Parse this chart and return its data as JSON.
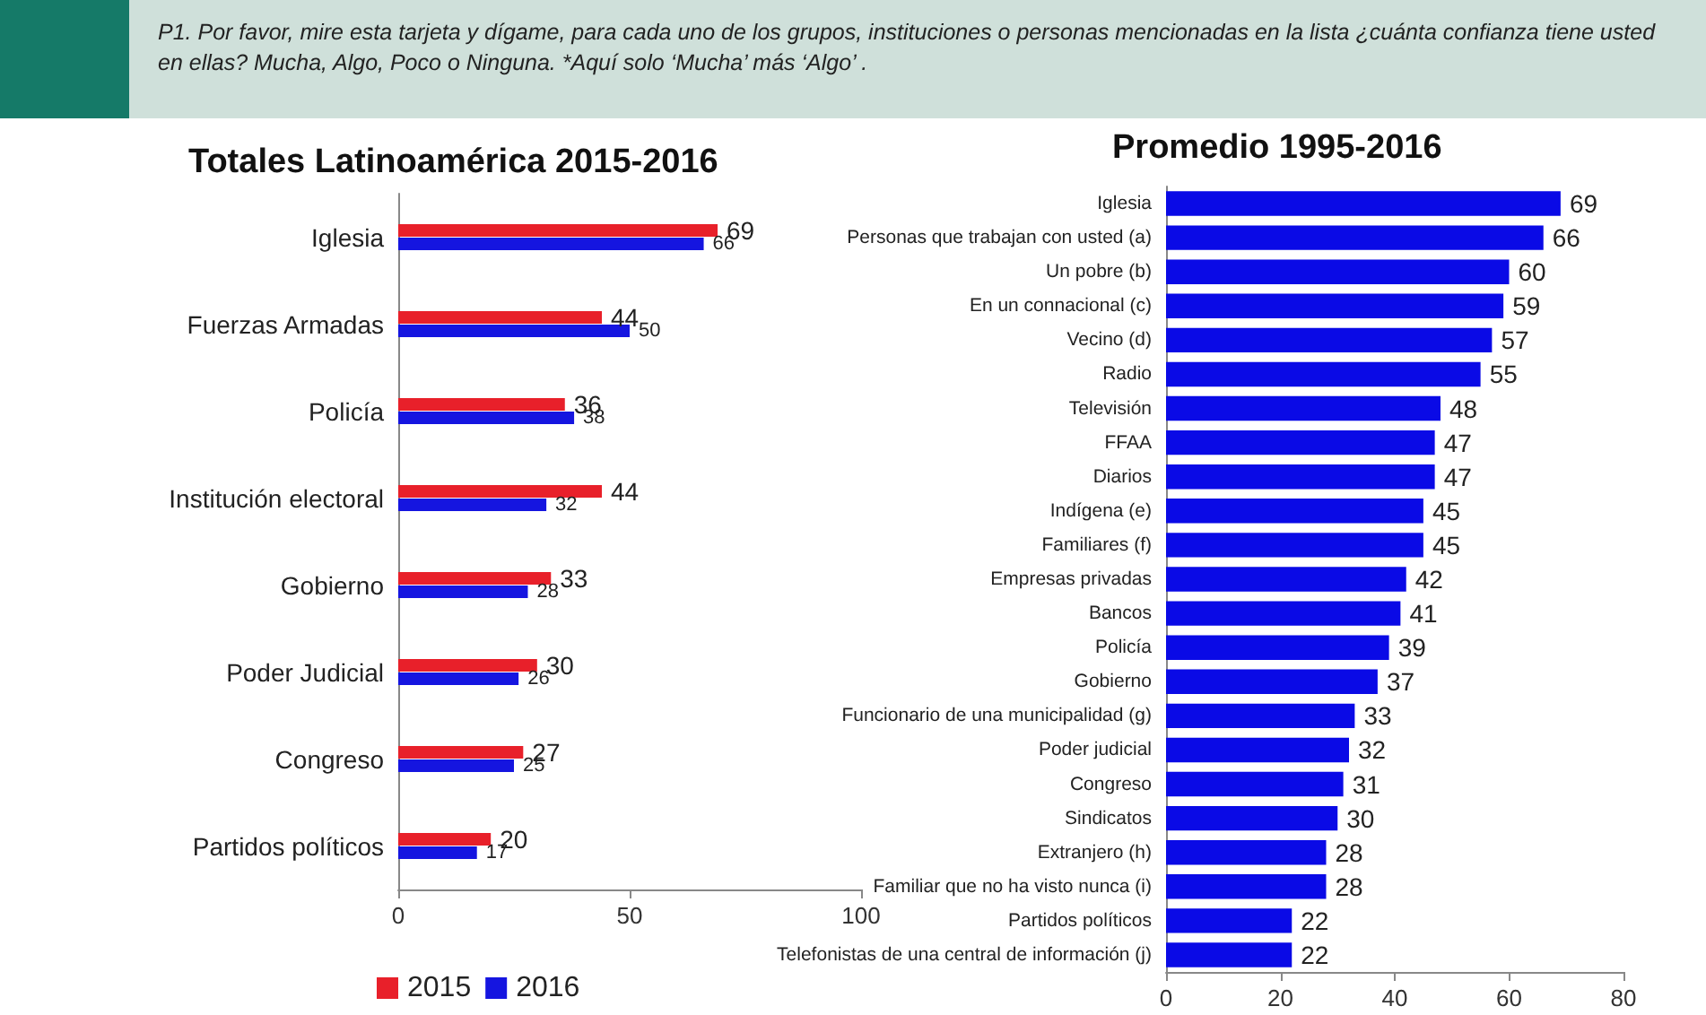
{
  "chart_data": [
    {
      "type": "other",
      "title": "P1. Por favor, mire esta tarjeta y dígame, para cada uno de los grupos, instituciones o personas mencionadas en la lista ¿cuánta confianza tiene usted en ellas? Mucha, Algo, Poco o Ninguna.  *Aquí solo ‘Mucha’ más ‘Algo’ ."
    },
    {
      "type": "bar",
      "orientation": "horizontal",
      "title": "Totales Latinoamérica 2015-2016",
      "categories": [
        "Iglesia",
        "Fuerzas Armadas",
        "Policía",
        "Institución electoral",
        "Gobierno",
        "Poder Judicial",
        "Congreso",
        "Partidos políticos"
      ],
      "series": [
        {
          "name": "2015",
          "color": "#e8202a",
          "values": [
            69,
            44,
            36,
            44,
            33,
            30,
            27,
            20
          ]
        },
        {
          "name": "2016",
          "color": "#1515e0",
          "values": [
            66,
            50,
            38,
            32,
            28,
            26,
            25,
            17
          ]
        }
      ],
      "xlim": [
        0,
        100
      ],
      "xticks": [
        0,
        50,
        100
      ],
      "data_labels": true,
      "legend": "bottom left"
    },
    {
      "type": "bar",
      "orientation": "horizontal",
      "title": "Promedio 1995-2016",
      "categories": [
        "Iglesia",
        "Personas que trabajan con usted (a)",
        "Un pobre (b)",
        "En un connacional (c)",
        "Vecino (d)",
        "Radio",
        "Televisión",
        "FFAA",
        "Diarios",
        "Indígena (e)",
        "Familiares (f)",
        "Empresas privadas",
        "Bancos",
        "Policía",
        "Gobierno",
        "Funcionario de una municipalidad (g)",
        "Poder judicial",
        "Congreso",
        "Sindicatos",
        "Extranjero (h)",
        "Familiar que no ha visto nunca (i)",
        "Partidos políticos",
        "Telefonistas de una central de información (j)"
      ],
      "series": [
        {
          "color": "#0a0ae6",
          "values": [
            69,
            66,
            60,
            59,
            57,
            55,
            48,
            47,
            47,
            45,
            45,
            42,
            41,
            39,
            37,
            33,
            32,
            31,
            30,
            28,
            28,
            22,
            22
          ]
        }
      ],
      "xlim": [
        0,
        80
      ],
      "xticks": [
        0,
        20,
        40,
        60,
        80
      ],
      "data_labels": true
    }
  ]
}
